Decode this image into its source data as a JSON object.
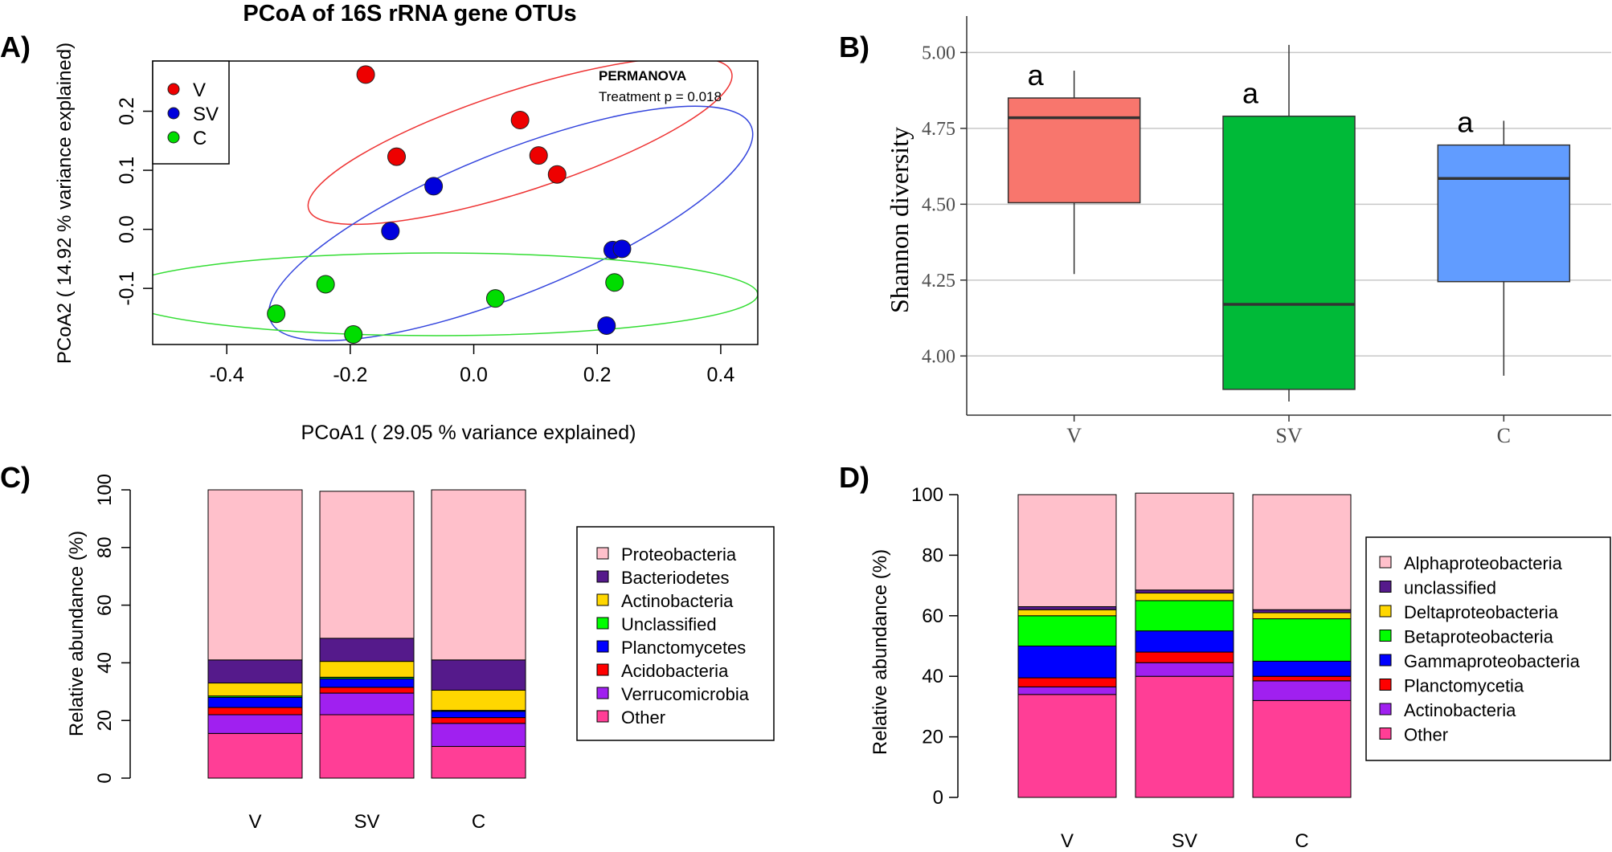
{
  "chart_data": [
    {
      "panel": "A)",
      "type": "scatter",
      "title": "PCoA of 16S rRNA gene OTUs",
      "xlabel": "PCoA1 ( 29.05 % variance explained)",
      "ylabel": "PCoA2 ( 14.92 % variance explained)",
      "xlim": [
        -0.52,
        0.46
      ],
      "ylim": [
        -0.195,
        0.285
      ],
      "xticks": [
        -0.4,
        -0.2,
        0.0,
        0.2,
        0.4
      ],
      "yticks": [
        -0.1,
        0.0,
        0.1,
        0.2
      ],
      "xtick_labels": [
        "-0.4",
        "-0.2",
        "0.0",
        "0.2",
        "0.4"
      ],
      "ytick_labels": [
        "-0.1",
        "0.0",
        "0.1",
        "0.2"
      ],
      "annotation": {
        "title": "PERMANOVA",
        "text": "Treatment p = 0.018"
      },
      "legend_position": "top-left",
      "series": [
        {
          "name": "V",
          "color": "#ee0000",
          "ellipse_color": "#ee3333",
          "x": [
            -0.175,
            0.075,
            0.105,
            0.135,
            -0.125
          ],
          "y": [
            0.262,
            0.185,
            0.125,
            0.093,
            0.123
          ],
          "ellipse": {
            "cx": 0.075,
            "cy": 0.15,
            "rx": 0.36,
            "ry": 0.085,
            "angle": -18
          }
        },
        {
          "name": "SV",
          "color": "#0000dd",
          "ellipse_color": "#3344dd",
          "x": [
            -0.065,
            -0.135,
            0.225,
            0.24,
            0.215
          ],
          "y": [
            0.073,
            -0.003,
            -0.035,
            -0.033,
            -0.163
          ],
          "ellipse": {
            "cx": 0.06,
            "cy": 0.01,
            "rx": 0.42,
            "ry": 0.12,
            "angle": -22
          }
        },
        {
          "name": "C",
          "color": "#00dd00",
          "ellipse_color": "#33dd33",
          "x": [
            -0.32,
            -0.24,
            -0.195,
            0.035,
            0.228
          ],
          "y": [
            -0.143,
            -0.093,
            -0.178,
            -0.117,
            -0.09
          ],
          "ellipse": {
            "cx": -0.06,
            "cy": -0.11,
            "rx": 0.52,
            "ry": 0.07,
            "angle": 0
          }
        }
      ]
    },
    {
      "panel": "B)",
      "type": "box",
      "xlabel": "",
      "ylabel": "Shannon diversity",
      "ylim": [
        3.805,
        5.12
      ],
      "yticks": [
        4.0,
        4.25,
        4.5,
        4.75,
        5.0
      ],
      "ytick_labels": [
        "4.00",
        "4.25",
        "4.50",
        "4.75",
        "5.00"
      ],
      "grid": true,
      "categories": [
        "V",
        "SV",
        "C"
      ],
      "letters": [
        "a",
        "a",
        "a"
      ],
      "boxes": [
        {
          "category": "V",
          "min": 4.27,
          "q1": 4.505,
          "median": 4.785,
          "q3": 4.85,
          "max": 4.94,
          "color": "#f8766d"
        },
        {
          "category": "SV",
          "min": 3.85,
          "q1": 3.89,
          "median": 4.17,
          "q3": 4.79,
          "max": 5.025,
          "color": "#00ba38"
        },
        {
          "category": "C",
          "min": 3.935,
          "q1": 4.245,
          "median": 4.585,
          "q3": 4.695,
          "max": 4.775,
          "color": "#619cff"
        }
      ]
    },
    {
      "panel": "C)",
      "type": "bar",
      "stacked": true,
      "ylabel": "Relative abundance (%)",
      "ylim": [
        0,
        100
      ],
      "yticks": [
        0,
        20,
        40,
        60,
        80,
        100
      ],
      "ytick_labels": [
        "0",
        "20",
        "40",
        "60",
        "80",
        "100"
      ],
      "categories": [
        "V",
        "SV",
        "C"
      ],
      "legend_position": "right",
      "stack_order_bottom_to_top": [
        "Other",
        "Verrucomicrobia",
        "Acidobacteria",
        "Planctomycetes",
        "Unclassified",
        "Actinobacteria",
        "Bacteriodetes",
        "Proteobacteria"
      ],
      "series": [
        {
          "name": "Proteobacteria",
          "color": "#ffc0cb",
          "values": [
            59,
            51,
            59
          ]
        },
        {
          "name": "Bacteriodetes",
          "color": "#551a8b",
          "values": [
            8,
            8,
            10.5
          ]
        },
        {
          "name": "Actinobacteria",
          "color": "#ffd700",
          "values": [
            4.5,
            5.5,
            7
          ]
        },
        {
          "name": "Unclassified",
          "color": "#00ff00",
          "values": [
            0.5,
            0.5,
            0.3
          ]
        },
        {
          "name": "Planctomycetes",
          "color": "#0000ff",
          "values": [
            3.5,
            3,
            2.2
          ]
        },
        {
          "name": "Acidobacteria",
          "color": "#ff0000",
          "values": [
            2.5,
            2,
            2
          ]
        },
        {
          "name": "Verrucomicrobia",
          "color": "#a020f0",
          "values": [
            6.5,
            7.5,
            8
          ]
        },
        {
          "name": "Other",
          "color": "#ff3e96",
          "values": [
            15.5,
            22,
            11
          ]
        }
      ]
    },
    {
      "panel": "D)",
      "type": "bar",
      "stacked": true,
      "ylabel": "Relative abundance (%)",
      "ylim": [
        0,
        100
      ],
      "yticks": [
        0,
        20,
        40,
        60,
        80,
        100
      ],
      "ytick_labels": [
        "0",
        "20",
        "40",
        "60",
        "80",
        "100"
      ],
      "categories": [
        "V",
        "SV",
        "C"
      ],
      "legend_position": "right",
      "stack_order_bottom_to_top": [
        "Other",
        "Actinobacteria",
        "Planctomycetia",
        "Gammaproteobacteria",
        "Betaproteobacteria",
        "Deltaproteobacteria",
        "unclassified",
        "Alphaproteobacteria"
      ],
      "series": [
        {
          "name": "Alphaproteobacteria",
          "color": "#ffc0cb",
          "values": [
            37,
            32,
            38
          ]
        },
        {
          "name": "unclassified",
          "color": "#551a8b",
          "values": [
            1,
            1,
            1
          ]
        },
        {
          "name": "Deltaproteobacteria",
          "color": "#ffd700",
          "values": [
            2,
            2.5,
            2
          ]
        },
        {
          "name": "Betaproteobacteria",
          "color": "#00ff00",
          "values": [
            10,
            10,
            14
          ]
        },
        {
          "name": "Gammaproteobacteria",
          "color": "#0000ff",
          "values": [
            10.5,
            7,
            5
          ]
        },
        {
          "name": "Planctomycetia",
          "color": "#ff0000",
          "values": [
            3,
            3.5,
            1.5
          ]
        },
        {
          "name": "Actinobacteria",
          "color": "#a020f0",
          "values": [
            2.5,
            4.5,
            6.5
          ]
        },
        {
          "name": "Other",
          "color": "#ff3e96",
          "values": [
            34,
            40,
            32
          ]
        }
      ]
    }
  ]
}
